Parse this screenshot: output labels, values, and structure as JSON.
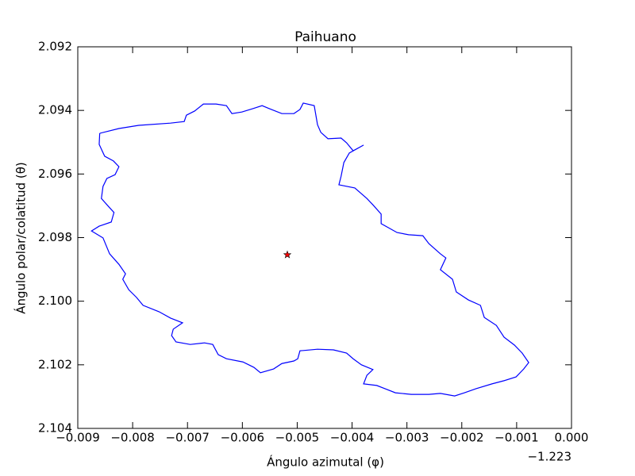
{
  "chart_data": {
    "type": "line",
    "title": "Paihuano",
    "x_label": "Ángulo azimutal (φ)",
    "y_label": "Ángulo polar/colatitud (θ)",
    "x_offset_label": "−1.223",
    "xlim": [
      -0.009,
      0.0
    ],
    "ylim": [
      2.104,
      2.092
    ],
    "xticks": [
      {
        "value": -0.009,
        "label": "−0.009"
      },
      {
        "value": -0.008,
        "label": "−0.008"
      },
      {
        "value": -0.007,
        "label": "−0.007"
      },
      {
        "value": -0.006,
        "label": "−0.006"
      },
      {
        "value": -0.005,
        "label": "−0.005"
      },
      {
        "value": -0.004,
        "label": "−0.004"
      },
      {
        "value": -0.003,
        "label": "−0.003"
      },
      {
        "value": -0.002,
        "label": "−0.002"
      },
      {
        "value": -0.001,
        "label": "−0.001"
      },
      {
        "value": 0.0,
        "label": "0.000"
      }
    ],
    "yticks": [
      2.092,
      2.094,
      2.096,
      2.098,
      {
        "value": 2.1,
        "label": "2.100"
      },
      2.102,
      2.104
    ],
    "grid": false,
    "series": [
      {
        "color": "#0000ff",
        "x": [
          -0.0086,
          -0.00825,
          -0.00789,
          -0.00731,
          -0.00706,
          -0.00702,
          -0.00687,
          -0.00671,
          -0.00648,
          -0.00629,
          -0.00619,
          -0.00601,
          -0.00582,
          -0.00564,
          -0.0055,
          -0.00528,
          -0.00506,
          -0.00495,
          -0.00489,
          -0.00469,
          -0.00463,
          -0.00457,
          -0.00444,
          -0.0042,
          -0.0041,
          -0.00398,
          -0.00379,
          -0.00405,
          -0.00415,
          -0.0042,
          -0.00424,
          -0.00395,
          -0.00373,
          -0.00362,
          -0.00347,
          -0.00347,
          -0.00318,
          -0.00297,
          -0.00271,
          -0.0026,
          -0.00239,
          -0.00229,
          -0.00239,
          -0.00217,
          -0.0021,
          -0.00188,
          -0.00166,
          -0.00159,
          -0.00137,
          -0.00123,
          -0.00104,
          -0.0009,
          -0.00078,
          -0.00087,
          -0.00101,
          -0.00123,
          -0.00145,
          -0.00174,
          -0.00195,
          -0.00213,
          -0.00239,
          -0.0026,
          -0.00292,
          -0.00321,
          -0.0034,
          -0.00355,
          -0.00379,
          -0.00373,
          -0.00362,
          -0.00383,
          -0.00398,
          -0.0041,
          -0.00434,
          -0.00463,
          -0.00495,
          -0.00499,
          -0.00506,
          -0.00528,
          -0.00543,
          -0.00567,
          -0.00579,
          -0.00599,
          -0.00629,
          -0.00644,
          -0.00654,
          -0.00669,
          -0.00695,
          -0.00721,
          -0.00729,
          -0.00726,
          -0.00709,
          -0.00731,
          -0.00752,
          -0.00781,
          -0.00793,
          -0.00807,
          -0.00818,
          -0.00813,
          -0.00825,
          -0.00842,
          -0.00854,
          -0.00875,
          -0.00861,
          -0.00839,
          -0.00834,
          -0.00842,
          -0.00857,
          -0.00854,
          -0.00847,
          -0.00832,
          -0.00825,
          -0.00835,
          -0.00851,
          -0.00861,
          -0.0086
        ],
        "y": [
          2.09472,
          2.09457,
          2.09447,
          2.0944,
          2.09435,
          2.09415,
          2.09402,
          2.0938,
          2.0938,
          2.09385,
          2.0941,
          2.09405,
          2.09395,
          2.09385,
          2.09395,
          2.0941,
          2.0941,
          2.09397,
          2.09377,
          2.09385,
          2.09445,
          2.09469,
          2.09489,
          2.09487,
          2.09502,
          2.09527,
          2.09509,
          2.09534,
          2.09564,
          2.09607,
          2.09634,
          2.09644,
          2.09677,
          2.09697,
          2.09726,
          2.09756,
          2.09784,
          2.09791,
          2.09794,
          2.09819,
          2.09851,
          2.09864,
          2.09901,
          2.09931,
          2.09971,
          2.09996,
          2.10013,
          2.10051,
          2.10076,
          2.10113,
          2.10138,
          2.10163,
          2.10193,
          2.10213,
          2.10238,
          2.1025,
          2.1026,
          2.10275,
          2.10288,
          2.10298,
          2.1029,
          2.10293,
          2.10293,
          2.10288,
          2.10275,
          2.10265,
          2.1026,
          2.10233,
          2.10215,
          2.102,
          2.10181,
          2.10163,
          2.10153,
          2.10151,
          2.10156,
          2.10181,
          2.10188,
          2.10196,
          2.10213,
          2.10225,
          2.10208,
          2.10191,
          2.10181,
          2.10168,
          2.10136,
          2.10131,
          2.10136,
          2.10128,
          2.10108,
          2.10088,
          2.10068,
          2.10053,
          2.10033,
          2.10013,
          2.09988,
          2.09964,
          2.09931,
          2.09914,
          2.09884,
          2.09851,
          2.09801,
          2.09779,
          2.09764,
          2.09751,
          2.09721,
          2.09706,
          2.09677,
          2.09639,
          2.09614,
          2.09602,
          2.09577,
          2.09559,
          2.09544,
          2.09507,
          2.09472
        ]
      }
    ],
    "marker": {
      "x": -0.00518,
      "y": 2.09854,
      "color": "#ff0000"
    }
  }
}
